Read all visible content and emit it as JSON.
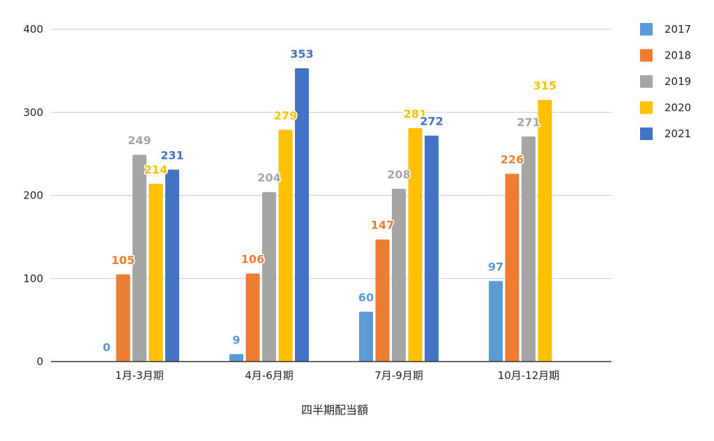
{
  "chart_data": {
    "type": "bar",
    "title": "",
    "xlabel": "四半期配当額",
    "ylabel": "",
    "ylim": [
      0,
      400
    ],
    "yticks": [
      0,
      100,
      200,
      300,
      400
    ],
    "grid": true,
    "legend_position": "right",
    "categories": [
      "1月-3月期",
      "4月-6月期",
      "7月-9月期",
      "10月-12月期"
    ],
    "series": [
      {
        "name": "2017",
        "color": "#5b9bd5",
        "values": [
          0,
          9,
          60,
          97
        ]
      },
      {
        "name": "2018",
        "color": "#ed7d31",
        "values": [
          105,
          106,
          147,
          226
        ]
      },
      {
        "name": "2019",
        "color": "#a5a5a5",
        "values": [
          249,
          204,
          208,
          271
        ]
      },
      {
        "name": "2020",
        "color": "#ffc000",
        "values": [
          214,
          279,
          281,
          315
        ]
      },
      {
        "name": "2021",
        "color": "#4472c4",
        "values": [
          231,
          353,
          272,
          null
        ]
      }
    ]
  }
}
